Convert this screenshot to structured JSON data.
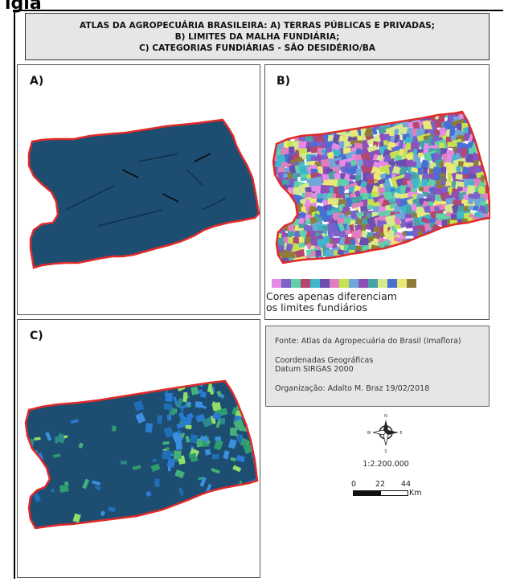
{
  "header_fragment": "ıgıa",
  "title": {
    "line1": "ATLAS DA AGROPECUÁRIA BRASILEIRA: A) TERRAS PÚBLICAS E PRIVADAS;",
    "line2": "B) LIMITES DA MALHA FUNDIÁRIA;",
    "line3": "C) CATEGORIAS FUNDIÁRIAS - SÃO DESIDÉRIO/BA"
  },
  "panels": {
    "a_label": "A)",
    "b_label": "B)",
    "c_label": "C)"
  },
  "legend": {
    "line1": "Cores apenas diferenciam",
    "line2": "os limites fundiários",
    "swatches": [
      "#e58be6",
      "#7b62c9",
      "#5fd0a8",
      "#b4476e",
      "#3fb6c9",
      "#6b4fb0",
      "#e07fbe",
      "#c6e34f",
      "#6fa7d8",
      "#8e50b8",
      "#47a3a5",
      "#d7e98c",
      "#4a6fd4",
      "#e9e973",
      "#8f7c3b"
    ]
  },
  "info": {
    "source": "Fonte: Atlas da Agropecuária do Brasil (Imaflora)",
    "coords1": "Coordenadas Geográficas",
    "coords2": "Datum SIRGAS 2000",
    "org": "Organização: Adalto M. Braz 19/02/2018"
  },
  "north_arrow": {
    "n": "N",
    "s": "S",
    "e": "E",
    "w": "W"
  },
  "scale": {
    "ratio": "1:2.200.000",
    "t0": "0",
    "t1": "22",
    "t2": "44",
    "unit": "Km"
  },
  "colors": {
    "map_fill": "#1d4e72",
    "boundary": "#e02a2a",
    "title_bg": "#e6e6e6",
    "info_bg": "#e6e6e6"
  }
}
